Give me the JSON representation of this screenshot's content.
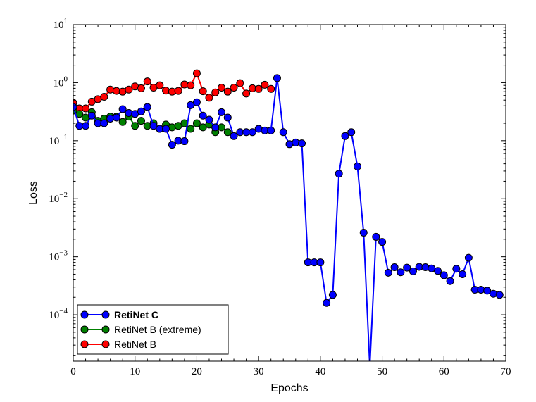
{
  "chart_data": {
    "type": "line",
    "xlabel": "Epochs",
    "ylabel": "Loss",
    "y_scale": "log",
    "xlim": [
      0,
      70
    ],
    "ylim_log10": [
      -4.8,
      1
    ],
    "x_ticks": [
      0,
      10,
      20,
      30,
      40,
      50,
      60,
      70
    ],
    "y_ticks": [
      {
        "exp": -4,
        "base": "10",
        "sup": "−4"
      },
      {
        "exp": -3,
        "base": "10",
        "sup": "−3"
      },
      {
        "exp": -2,
        "base": "10",
        "sup": "−2"
      },
      {
        "exp": -1,
        "base": "10",
        "sup": "−1"
      },
      {
        "exp": 0,
        "base": "10",
        "sup": "0"
      },
      {
        "exp": 1,
        "base": "10",
        "sup": "1"
      }
    ],
    "grid": false,
    "legend_position": "lower-left",
    "series": [
      {
        "name": "RetiNet C",
        "color": "#0000ff",
        "bold_legend": true,
        "x": [
          0,
          1,
          2,
          3,
          4,
          5,
          6,
          7,
          8,
          9,
          10,
          11,
          12,
          13,
          14,
          15,
          16,
          17,
          18,
          19,
          20,
          21,
          22,
          23,
          24,
          25,
          26,
          27,
          28,
          29,
          30,
          31,
          32,
          33,
          34,
          35,
          36,
          37,
          38,
          39,
          40,
          41,
          42,
          43,
          44,
          45,
          46,
          47,
          48,
          49,
          50,
          51,
          52,
          53,
          54,
          55,
          56,
          57,
          58,
          59,
          60,
          61,
          62,
          63,
          64,
          65,
          66,
          67,
          68,
          69
        ],
        "y": [
          0.38,
          0.18,
          0.18,
          0.27,
          0.2,
          0.2,
          0.24,
          0.25,
          0.35,
          0.3,
          0.29,
          0.32,
          0.38,
          0.18,
          0.16,
          0.16,
          0.085,
          0.1,
          0.098,
          0.41,
          0.46,
          0.27,
          0.23,
          0.17,
          0.31,
          0.25,
          0.12,
          0.14,
          0.14,
          0.14,
          0.16,
          0.15,
          0.15,
          1.2,
          0.14,
          0.087,
          0.093,
          0.09,
          0.0008,
          0.0008,
          0.0008,
          0.00016,
          0.00022,
          0.027,
          0.12,
          0.14,
          0.036,
          0.0026,
          1.3e-05,
          0.0022,
          0.0018,
          0.00053,
          0.00066,
          0.00054,
          0.00065,
          0.00056,
          0.00067,
          0.00066,
          0.00063,
          0.00057,
          0.00048,
          0.00038,
          0.00062,
          0.0005,
          0.00096,
          0.00027,
          0.00027,
          0.00026,
          0.00023,
          0.00022
        ]
      },
      {
        "name": "RetiNet B (extreme)",
        "color": "#008000",
        "bold_legend": false,
        "x": [
          0,
          1,
          2,
          3,
          4,
          5,
          6,
          7,
          8,
          9,
          10,
          11,
          12,
          13,
          14,
          15,
          16,
          17,
          18,
          19,
          20,
          21,
          22,
          23,
          24,
          25
        ],
        "y": [
          0.33,
          0.29,
          0.25,
          0.31,
          0.22,
          0.24,
          0.26,
          0.26,
          0.21,
          0.26,
          0.18,
          0.22,
          0.18,
          0.2,
          0.16,
          0.19,
          0.17,
          0.18,
          0.2,
          0.16,
          0.2,
          0.17,
          0.19,
          0.14,
          0.17,
          0.14
        ]
      },
      {
        "name": "RetiNet B",
        "color": "#ff0000",
        "bold_legend": false,
        "x": [
          0,
          1,
          2,
          3,
          4,
          5,
          6,
          7,
          8,
          9,
          10,
          11,
          12,
          13,
          14,
          15,
          16,
          17,
          18,
          19,
          20,
          21,
          22,
          23,
          24,
          25,
          26,
          27,
          28,
          29,
          30,
          31,
          32
        ],
        "y": [
          0.45,
          0.36,
          0.36,
          0.47,
          0.52,
          0.57,
          0.76,
          0.72,
          0.7,
          0.76,
          0.86,
          0.8,
          1.05,
          0.82,
          0.9,
          0.73,
          0.7,
          0.72,
          0.93,
          0.9,
          1.45,
          0.71,
          0.55,
          0.68,
          0.82,
          0.7,
          0.82,
          0.98,
          0.65,
          0.8,
          0.78,
          0.92,
          0.78
        ]
      }
    ]
  }
}
